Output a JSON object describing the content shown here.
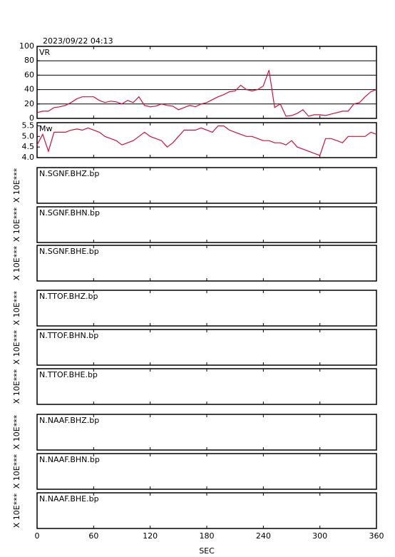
{
  "timestamp": "2023/09/22 04:13",
  "x_axis": {
    "label": "SEC",
    "xlim": [
      0,
      360
    ],
    "xticks": [
      0,
      60,
      120,
      180,
      240,
      300,
      360
    ]
  },
  "chart_data": [
    {
      "type": "line",
      "label": "VR",
      "ylim": [
        0,
        100
      ],
      "yticks": [
        0,
        20,
        40,
        60,
        80,
        100
      ],
      "grid": true,
      "x": [
        0,
        6,
        12,
        18,
        24,
        30,
        36,
        42,
        48,
        54,
        60,
        66,
        72,
        78,
        84,
        90,
        96,
        102,
        108,
        114,
        120,
        126,
        132,
        138,
        144,
        150,
        156,
        162,
        168,
        174,
        180,
        186,
        192,
        198,
        204,
        210,
        216,
        222,
        228,
        234,
        240,
        246,
        252,
        258,
        264,
        270,
        276,
        282,
        288,
        294,
        300,
        306,
        312,
        318,
        324,
        330,
        336,
        342,
        348,
        354,
        360
      ],
      "series": [
        {
          "color": "#d0103a",
          "values": [
            8,
            10,
            10,
            15,
            16,
            18,
            22,
            27,
            30,
            30,
            30,
            25,
            22,
            24,
            23,
            20,
            25,
            22,
            30,
            18,
            16,
            17,
            20,
            18,
            17,
            12,
            15,
            18,
            16,
            20,
            22,
            26,
            30,
            33,
            37,
            38,
            46,
            40,
            38,
            40,
            45,
            67,
            15,
            20,
            3,
            4,
            7,
            12,
            3,
            5,
            5,
            4,
            6,
            8,
            10,
            10,
            20,
            22,
            30,
            37,
            40
          ]
        }
      ]
    },
    {
      "type": "line",
      "label": "Mw",
      "ylim": [
        4.0,
        5.65
      ],
      "yticks": [
        {
          "value": 4,
          "label": "4.0"
        },
        4.5,
        {
          "value": 5,
          "label": "5.0"
        },
        5.5
      ],
      "grid": false,
      "x": [
        0,
        6,
        12,
        18,
        24,
        30,
        36,
        42,
        48,
        54,
        60,
        66,
        72,
        78,
        84,
        90,
        96,
        102,
        108,
        114,
        120,
        126,
        132,
        138,
        144,
        150,
        156,
        162,
        168,
        174,
        180,
        186,
        192,
        198,
        204,
        210,
        216,
        222,
        228,
        234,
        240,
        246,
        252,
        258,
        264,
        270,
        276,
        282,
        288,
        294,
        300,
        306,
        312,
        318,
        324,
        330,
        336,
        342,
        348,
        354,
        360
      ],
      "series": [
        {
          "color": "#d0103a",
          "values": [
            4.6,
            5.1,
            4.3,
            5.2,
            5.2,
            5.2,
            5.3,
            5.35,
            5.3,
            5.4,
            5.3,
            5.2,
            5.0,
            4.9,
            4.8,
            4.6,
            4.7,
            4.8,
            5.0,
            5.2,
            5.0,
            4.9,
            4.8,
            4.5,
            4.7,
            5.0,
            5.3,
            5.3,
            5.3,
            5.4,
            5.3,
            5.2,
            5.5,
            5.5,
            5.3,
            5.2,
            5.1,
            5.0,
            5.0,
            4.9,
            4.8,
            4.8,
            4.7,
            4.7,
            4.6,
            4.8,
            4.5,
            4.4,
            4.3,
            4.2,
            4.1,
            4.9,
            4.9,
            4.8,
            4.7,
            5.0,
            5.0,
            5.0,
            5.0,
            5.2,
            5.1
          ]
        }
      ]
    },
    {
      "type": "waveform",
      "label": "N.SGNF.BHZ.bp",
      "y_label": "X 10E***"
    },
    {
      "type": "waveform",
      "label": "N.SGNF.BHN.bp",
      "y_label": "X 10E***"
    },
    {
      "type": "waveform",
      "label": "N.SGNF.BHE.bp",
      "y_label": "X 10E***"
    },
    {
      "type": "waveform",
      "label": "N.TTOF.BHZ.bp",
      "y_label": "X 10E***"
    },
    {
      "type": "waveform",
      "label": "N.TTOF.BHN.bp",
      "y_label": "X 10E***"
    },
    {
      "type": "waveform",
      "label": "N.TTOF.BHE.bp",
      "y_label": "X 10E***"
    },
    {
      "type": "waveform",
      "label": "N.NAAF.BHZ.bp",
      "y_label": "X 10E***"
    },
    {
      "type": "waveform",
      "label": "N.NAAF.BHN.bp",
      "y_label": "X 10E***"
    },
    {
      "type": "waveform",
      "label": "N.NAAF.BHE.bp",
      "y_label": "X 10E***"
    }
  ]
}
